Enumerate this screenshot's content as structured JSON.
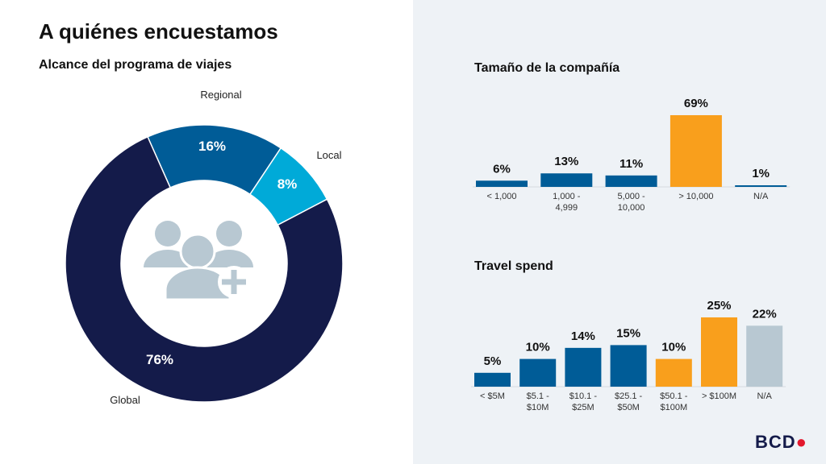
{
  "title": "A quiénes encuestamos",
  "logo": "BCD",
  "colors": {
    "navy": "#141b4a",
    "blue": "#005c97",
    "cyan": "#00aad8",
    "orange": "#f99f1c",
    "gray": "#b8c8d2",
    "icon": "#b8c8d2"
  },
  "chart_data": [
    {
      "type": "pie",
      "title": "Alcance del programa de viajes",
      "categories": [
        "Regional",
        "Local",
        "Global"
      ],
      "values": [
        16,
        8,
        76
      ],
      "labels": [
        "16%",
        "8%",
        "76%"
      ],
      "colors": [
        "#005c97",
        "#00aad8",
        "#141b4a"
      ],
      "center_icon": "user-group-plus-icon"
    },
    {
      "type": "bar",
      "title": "Tamaño de la compañía",
      "categories": [
        "< 1,000",
        "1,000 - 4,999",
        "5,000 - 10,000",
        "> 10,000",
        "N/A"
      ],
      "values": [
        6,
        13,
        11,
        69,
        1
      ],
      "labels": [
        "6%",
        "13%",
        "11%",
        "69%",
        "1%"
      ],
      "colors": [
        "#005c97",
        "#005c97",
        "#005c97",
        "#f99f1c",
        "#005c97"
      ]
    },
    {
      "type": "bar",
      "title": "Travel spend",
      "categories": [
        "< $5M",
        "$5.1 - $10M",
        "$10.1 - $25M",
        "$25.1 - $50M",
        "$50.1 - $100M",
        "> $100M",
        "N/A"
      ],
      "values": [
        5,
        10,
        14,
        15,
        10,
        25,
        22
      ],
      "labels": [
        "5%",
        "10%",
        "14%",
        "15%",
        "10%",
        "25%",
        "22%"
      ],
      "colors": [
        "#005c97",
        "#005c97",
        "#005c97",
        "#005c97",
        "#f99f1c",
        "#f99f1c",
        "#b8c8d2"
      ]
    }
  ]
}
